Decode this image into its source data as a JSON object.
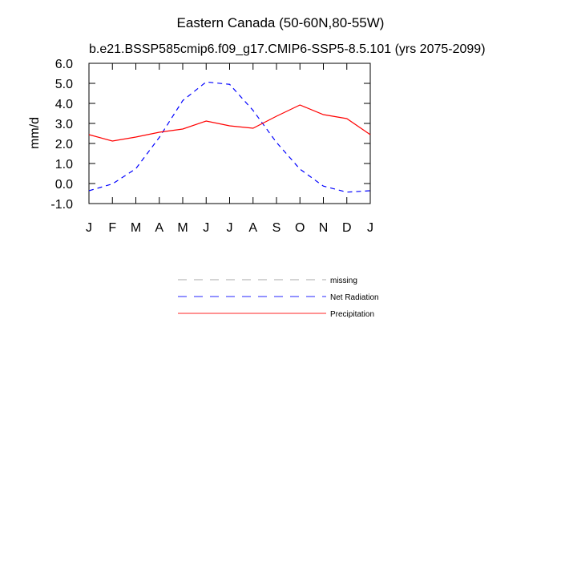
{
  "chart_data": {
    "type": "line",
    "title": "Eastern Canada (50-60N,80-55W)",
    "subtitle": "b.e21.BSSP585cmip6.f09_g17.CMIP6-SSP5-8.5.101 (yrs 2075-2099)",
    "ylabel": "mm/d",
    "categories": [
      "J",
      "F",
      "M",
      "A",
      "M",
      "J",
      "J",
      "A",
      "S",
      "O",
      "N",
      "D",
      "J"
    ],
    "series": [
      {
        "name": "missing",
        "color": "#999999",
        "dashed": true,
        "values": [
          null,
          null,
          null,
          null,
          null,
          null,
          null,
          null,
          null,
          null,
          null,
          null,
          null
        ]
      },
      {
        "name": "Net Radiation",
        "color": "#0000ff",
        "dashed": true,
        "values": [
          -0.36,
          -0.02,
          0.74,
          2.3,
          4.14,
          5.07,
          4.95,
          3.65,
          2.05,
          0.72,
          -0.13,
          -0.43,
          -0.36
        ]
      },
      {
        "name": "Precipitation",
        "color": "#ff0000",
        "dashed": false,
        "values": [
          2.44,
          2.12,
          2.32,
          2.56,
          2.72,
          3.12,
          2.88,
          2.76,
          3.36,
          3.92,
          3.44,
          3.24,
          2.44
        ]
      }
    ],
    "ylim": [
      -1,
      6
    ],
    "yticks": [
      {
        "value": 6,
        "label": "6.0"
      },
      {
        "value": 5,
        "label": "5.0"
      },
      {
        "value": 4,
        "label": "4.0"
      },
      {
        "value": 3,
        "label": "3.0"
      },
      {
        "value": 2,
        "label": "2.0"
      },
      {
        "value": 1,
        "label": "1.0"
      },
      {
        "value": 0,
        "label": "0.0"
      },
      {
        "value": -1,
        "label": "-1.0"
      }
    ],
    "grid": false
  }
}
